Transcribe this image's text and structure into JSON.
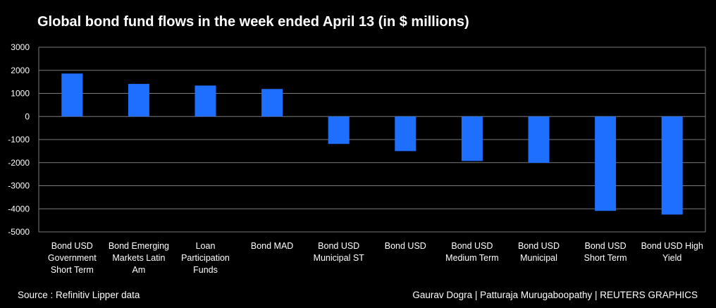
{
  "title": "Global bond fund flows in the week ended April 13 (in $ millions)",
  "footer": {
    "source": "Source : Refinitiv Lipper data",
    "credit": "Gaurav Dogra | Patturaja Murugaboopathy | REUTERS GRAPHICS"
  },
  "colors": {
    "bar": "#1f6fff",
    "grid": "#7a7a7a",
    "background": "#000000",
    "text": "#ffffff"
  },
  "chart_data": {
    "type": "bar",
    "title": "Global bond fund flows in the week ended April 13 (in $ millions)",
    "xlabel": "",
    "ylabel": "",
    "ylim": [
      -5000,
      3000
    ],
    "yticks": [
      3000,
      2000,
      1000,
      0,
      -1000,
      -2000,
      -3000,
      -4000,
      -5000
    ],
    "grid": true,
    "categories": [
      [
        "Bond USD",
        "Government",
        "Short Term"
      ],
      [
        "Bond Emerging",
        "Markets Latin",
        "Am"
      ],
      [
        "Loan",
        "Participation",
        "Funds"
      ],
      [
        "Bond MAD"
      ],
      [
        "Bond USD",
        "Municipal ST"
      ],
      [
        "Bond USD"
      ],
      [
        "Bond USD",
        "Medium Term"
      ],
      [
        "Bond USD",
        "Municipal"
      ],
      [
        "Bond USD",
        "Short Term"
      ],
      [
        "Bond USD High",
        "Yield"
      ]
    ],
    "values": [
      1860,
      1410,
      1340,
      1190,
      -1190,
      -1500,
      -1930,
      -2010,
      -4090,
      -4250
    ]
  }
}
